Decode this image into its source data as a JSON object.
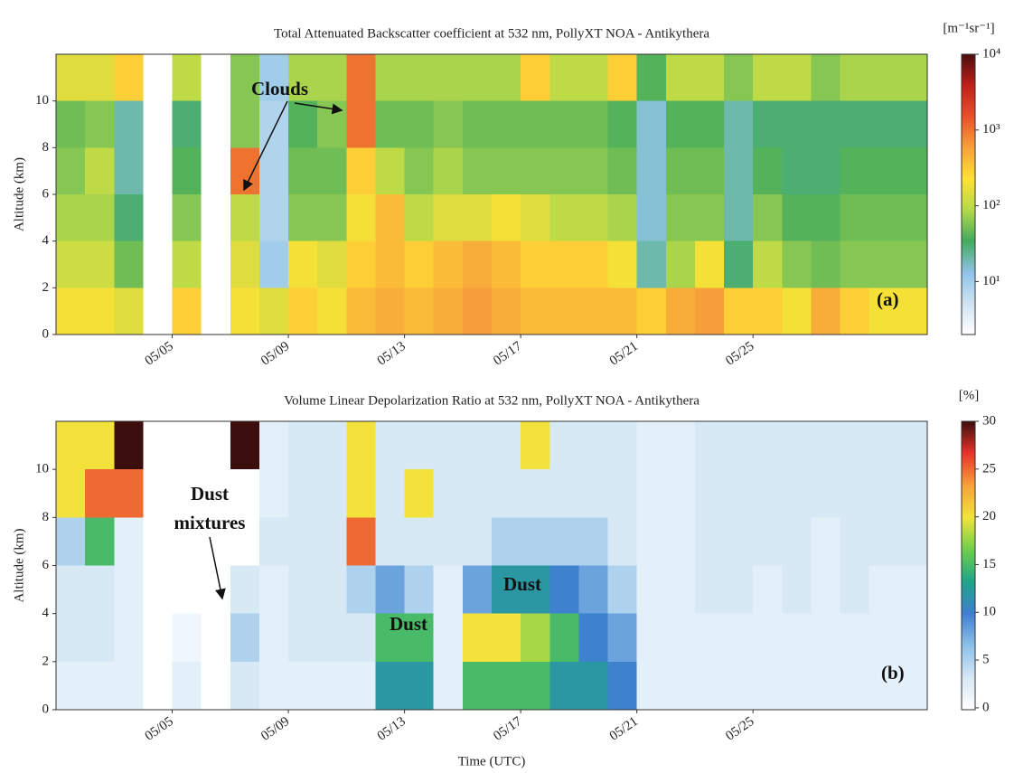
{
  "chart_data": [
    {
      "type": "heatmap",
      "title": "Total Attenuated Backscatter coefficient at 532 nm, PollyXT NOA - Antikythera",
      "ylabel": "Altitude (km)",
      "colorbar_label": "[m⁻¹sr⁻¹]",
      "annotations": [
        "Clouds",
        "(a)"
      ],
      "xlim": [
        1,
        31
      ],
      "ylim": [
        0,
        12
      ],
      "xticks": [
        {
          "value": 5,
          "label": "05/05"
        },
        {
          "value": 9,
          "label": "05/09"
        },
        {
          "value": 13,
          "label": "05/13"
        },
        {
          "value": 17,
          "label": "05/17"
        },
        {
          "value": 21,
          "label": "05/21"
        },
        {
          "value": 25,
          "label": "05/25"
        }
      ],
      "yticks": [
        0,
        2,
        4,
        6,
        8,
        10
      ],
      "xbins": [
        1,
        2,
        3,
        4,
        5,
        6,
        7,
        8,
        9,
        10,
        11,
        12,
        13,
        14,
        15,
        16,
        17,
        18,
        19,
        20,
        21,
        22,
        23,
        24,
        25,
        26,
        27,
        28,
        29,
        30,
        31
      ],
      "ybins": [
        0,
        2,
        4,
        6,
        8,
        10,
        12
      ],
      "zscale": "log",
      "zlim": [
        2,
        10000
      ],
      "zticks": [
        {
          "value": 10,
          "label": "10¹"
        },
        {
          "value": 100,
          "label": "10²"
        },
        {
          "value": 1000,
          "label": "10³"
        },
        {
          "value": 10000,
          "label": "10⁴"
        }
      ],
      "colormap": [
        "#ffffff",
        "#cfe3f3",
        "#8fc3e6",
        "#41ab5d",
        "#b5d94a",
        "#ffe135",
        "#f7a13a",
        "#e8502a",
        "#c0201a",
        "#4a0d0d"
      ],
      "z": [
        [
          200,
          120,
          80,
          60,
          50,
          150
        ],
        [
          200,
          120,
          80,
          100,
          60,
          150
        ],
        [
          150,
          50,
          30,
          20,
          20,
          300
        ],
        [
          null,
          null,
          null,
          null,
          null,
          null
        ],
        [
          300,
          100,
          60,
          40,
          30,
          100
        ],
        [
          null,
          null,
          null,
          null,
          null,
          null
        ],
        [
          200,
          150,
          100,
          1000,
          60,
          60
        ],
        [
          150,
          10,
          8,
          8,
          8,
          10
        ],
        [
          300,
          200,
          60,
          50,
          40,
          80
        ],
        [
          200,
          150,
          60,
          50,
          60,
          80
        ],
        [
          400,
          300,
          200,
          300,
          1000,
          1000
        ],
        [
          500,
          400,
          400,
          100,
          50,
          80
        ],
        [
          400,
          300,
          100,
          60,
          50,
          80
        ],
        [
          500,
          400,
          150,
          80,
          60,
          80
        ],
        [
          600,
          500,
          150,
          60,
          50,
          80
        ],
        [
          500,
          400,
          200,
          60,
          50,
          80
        ],
        [
          400,
          300,
          150,
          60,
          50,
          300
        ],
        [
          400,
          300,
          100,
          60,
          50,
          100
        ],
        [
          400,
          300,
          100,
          60,
          50,
          100
        ],
        [
          400,
          200,
          80,
          50,
          40,
          300
        ],
        [
          300,
          20,
          15,
          15,
          15,
          40
        ],
        [
          500,
          80,
          60,
          50,
          40,
          100
        ],
        [
          600,
          200,
          60,
          50,
          40,
          100
        ],
        [
          300,
          30,
          20,
          20,
          20,
          60
        ],
        [
          300,
          100,
          60,
          40,
          30,
          100
        ],
        [
          200,
          60,
          40,
          30,
          30,
          100
        ],
        [
          500,
          50,
          40,
          30,
          30,
          60
        ],
        [
          300,
          60,
          50,
          40,
          30,
          80
        ],
        [
          200,
          60,
          50,
          40,
          30,
          80
        ],
        [
          200,
          60,
          50,
          40,
          30,
          80
        ]
      ]
    },
    {
      "type": "heatmap",
      "title": "Volume Linear Depolarization Ratio at 532 nm, PollyXT NOA - Antikythera",
      "ylabel": "Altitude (km)",
      "xlabel": "Time (UTC)",
      "colorbar_label": "[%]",
      "annotations": [
        "Dust",
        "mixtures",
        "Dust",
        "Dust",
        "(b)"
      ],
      "xlim": [
        1,
        31
      ],
      "ylim": [
        0,
        12
      ],
      "xticks": [
        {
          "value": 5,
          "label": "05/05"
        },
        {
          "value": 9,
          "label": "05/09"
        },
        {
          "value": 13,
          "label": "05/13"
        },
        {
          "value": 17,
          "label": "05/17"
        },
        {
          "value": 21,
          "label": "05/21"
        },
        {
          "value": 25,
          "label": "05/25"
        }
      ],
      "yticks": [
        0,
        2,
        4,
        6,
        8,
        10
      ],
      "xbins": [
        1,
        2,
        3,
        4,
        5,
        6,
        7,
        8,
        9,
        10,
        11,
        12,
        13,
        14,
        15,
        16,
        17,
        18,
        19,
        20,
        21,
        22,
        23,
        24,
        25,
        26,
        27,
        28,
        29,
        30,
        31
      ],
      "ybins": [
        0,
        2,
        4,
        6,
        8,
        10,
        12
      ],
      "zscale": "linear",
      "zlim": [
        -0.2,
        30
      ],
      "zticks": [
        0,
        5,
        10,
        15,
        20,
        25,
        30
      ],
      "colormap": [
        "#ffffff",
        "#d6e8f6",
        "#8ec0e8",
        "#3f7fd0",
        "#1fa58a",
        "#6fcf4a",
        "#f3e33b",
        "#f7a13a",
        "#e8332a",
        "#3c0d0d"
      ],
      "z": [
        [
          2,
          3,
          3,
          5,
          20,
          20
        ],
        [
          2,
          3,
          3,
          15,
          25,
          20
        ],
        [
          2,
          2,
          2,
          2,
          25,
          30
        ],
        [
          null,
          null,
          null,
          null,
          null,
          null
        ],
        [
          2,
          1,
          null,
          null,
          null,
          null
        ],
        [
          null,
          null,
          null,
          null,
          null,
          null
        ],
        [
          3,
          5,
          3,
          null,
          null,
          30
        ],
        [
          2,
          2,
          2,
          3,
          2,
          2
        ],
        [
          2,
          3,
          3,
          3,
          3,
          3
        ],
        [
          2,
          3,
          3,
          3,
          3,
          3
        ],
        [
          2,
          3,
          5,
          25,
          20,
          20
        ],
        [
          12,
          15,
          8,
          3,
          3,
          3
        ],
        [
          12,
          15,
          5,
          3,
          20,
          3
        ],
        [
          2,
          2,
          2,
          3,
          3,
          3
        ],
        [
          15,
          20,
          8,
          3,
          3,
          3
        ],
        [
          15,
          20,
          12,
          5,
          3,
          3
        ],
        [
          15,
          18,
          12,
          5,
          3,
          20
        ],
        [
          12,
          15,
          10,
          5,
          3,
          3
        ],
        [
          12,
          10,
          8,
          5,
          3,
          3
        ],
        [
          10,
          8,
          5,
          3,
          3,
          3
        ],
        [
          2,
          2,
          2,
          2,
          2,
          2
        ],
        [
          2,
          2,
          2,
          2,
          2,
          2
        ],
        [
          2,
          2,
          3,
          3,
          3,
          3
        ],
        [
          2,
          2,
          3,
          3,
          3,
          3
        ],
        [
          2,
          2,
          2,
          3,
          3,
          3
        ],
        [
          2,
          2,
          3,
          3,
          3,
          3
        ],
        [
          2,
          2,
          2,
          2,
          3,
          3
        ],
        [
          2,
          2,
          3,
          3,
          3,
          3
        ],
        [
          2,
          2,
          2,
          3,
          3,
          3
        ],
        [
          2,
          2,
          2,
          3,
          3,
          3
        ]
      ]
    }
  ]
}
